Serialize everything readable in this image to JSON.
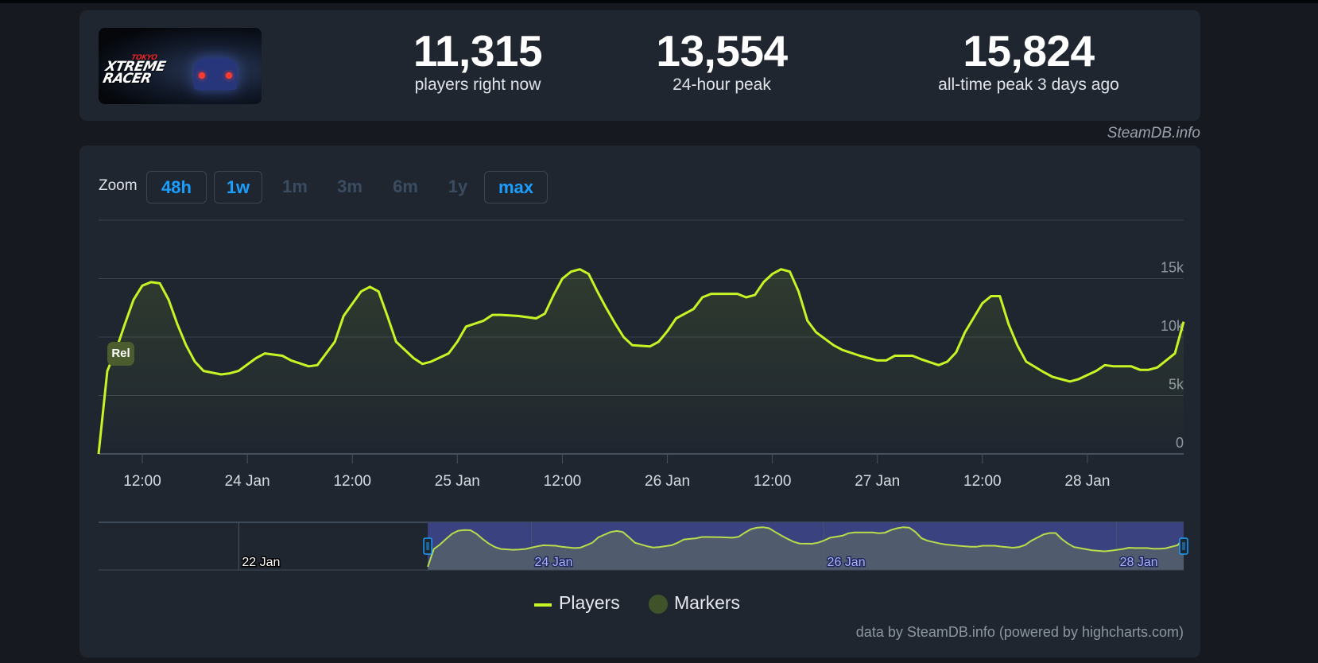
{
  "header": {
    "logo": "TOKYO XTREME RACER",
    "stats": [
      {
        "value": "11,315",
        "label": "players right now"
      },
      {
        "value": "13,554",
        "label": "24-hour peak"
      },
      {
        "value": "15,824",
        "label": "all-time peak 3 days ago"
      }
    ],
    "credit": "SteamDB.info"
  },
  "zoom": {
    "label": "Zoom",
    "buttons": [
      {
        "label": "48h",
        "active": true
      },
      {
        "label": "1w",
        "active": true
      },
      {
        "label": "1m",
        "active": false
      },
      {
        "label": "3m",
        "active": false
      },
      {
        "label": "6m",
        "active": false
      },
      {
        "label": "1y",
        "active": false
      },
      {
        "label": "max",
        "active": true
      }
    ]
  },
  "colors": {
    "line": "#c6f425",
    "marker": "#4b5c2e",
    "navigator_selection": "#3a4280",
    "accent": "#1a9fff"
  },
  "chart_data": {
    "type": "line",
    "x_range": [
      "23 Jan 07:00",
      "28 Jan 11:00"
    ],
    "ylim": [
      0,
      20000
    ],
    "y_ticks": [
      {
        "value": 0,
        "label": "0"
      },
      {
        "value": 5000,
        "label": "5k"
      },
      {
        "value": 10000,
        "label": "10k"
      },
      {
        "value": 15000,
        "label": "15k"
      }
    ],
    "x_ticks": [
      {
        "t": "23 Jan 12:00",
        "label": "12:00"
      },
      {
        "t": "24 Jan 00:00",
        "label": "24 Jan"
      },
      {
        "t": "24 Jan 12:00",
        "label": "12:00"
      },
      {
        "t": "25 Jan 00:00",
        "label": "25 Jan"
      },
      {
        "t": "25 Jan 12:00",
        "label": "12:00"
      },
      {
        "t": "26 Jan 00:00",
        "label": "26 Jan"
      },
      {
        "t": "26 Jan 12:00",
        "label": "12:00"
      },
      {
        "t": "27 Jan 00:00",
        "label": "27 Jan"
      },
      {
        "t": "27 Jan 12:00",
        "label": "12:00"
      },
      {
        "t": "28 Jan 00:00",
        "label": "28 Jan"
      }
    ],
    "grid": true,
    "series": [
      {
        "name": "Players",
        "points": [
          [
            "23 Jan 07:00",
            0
          ],
          [
            "23 Jan 08:00",
            7100
          ],
          [
            "23 Jan 09:00",
            8900
          ],
          [
            "23 Jan 10:00",
            11100
          ],
          [
            "23 Jan 11:00",
            13200
          ],
          [
            "23 Jan 12:00",
            14400
          ],
          [
            "23 Jan 13:00",
            14700
          ],
          [
            "23 Jan 14:00",
            14600
          ],
          [
            "23 Jan 15:00",
            13200
          ],
          [
            "23 Jan 16:00",
            11100
          ],
          [
            "23 Jan 17:00",
            9300
          ],
          [
            "23 Jan 18:00",
            7900
          ],
          [
            "23 Jan 19:00",
            7100
          ],
          [
            "23 Jan 21:00",
            6800
          ],
          [
            "23 Jan 22:00",
            6900
          ],
          [
            "23 Jan 23:00",
            7100
          ],
          [
            "24 Jan 01:00",
            8200
          ],
          [
            "24 Jan 02:00",
            8600
          ],
          [
            "24 Jan 04:00",
            8400
          ],
          [
            "24 Jan 05:00",
            8000
          ],
          [
            "24 Jan 07:00",
            7500
          ],
          [
            "24 Jan 08:00",
            7600
          ],
          [
            "24 Jan 09:00",
            8600
          ],
          [
            "24 Jan 10:00",
            9600
          ],
          [
            "24 Jan 11:00",
            11800
          ],
          [
            "24 Jan 13:00",
            13900
          ],
          [
            "24 Jan 14:00",
            14300
          ],
          [
            "24 Jan 15:00",
            13900
          ],
          [
            "24 Jan 16:00",
            11800
          ],
          [
            "24 Jan 17:00",
            9600
          ],
          [
            "24 Jan 19:00",
            8200
          ],
          [
            "24 Jan 20:00",
            7700
          ],
          [
            "24 Jan 21:00",
            7900
          ],
          [
            "24 Jan 23:00",
            8600
          ],
          [
            "25 Jan 00:00",
            9600
          ],
          [
            "25 Jan 01:00",
            10900
          ],
          [
            "25 Jan 03:00",
            11400
          ],
          [
            "25 Jan 04:00",
            11900
          ],
          [
            "25 Jan 05:00",
            11900
          ],
          [
            "25 Jan 07:00",
            11800
          ],
          [
            "25 Jan 09:00",
            11600
          ],
          [
            "25 Jan 10:00",
            12000
          ],
          [
            "25 Jan 11:00",
            13600
          ],
          [
            "25 Jan 12:00",
            15000
          ],
          [
            "25 Jan 13:00",
            15600
          ],
          [
            "25 Jan 14:00",
            15800
          ],
          [
            "25 Jan 15:00",
            15400
          ],
          [
            "25 Jan 16:00",
            13900
          ],
          [
            "25 Jan 17:00",
            12500
          ],
          [
            "25 Jan 18:00",
            11200
          ],
          [
            "25 Jan 19:00",
            10000
          ],
          [
            "25 Jan 20:00",
            9300
          ],
          [
            "25 Jan 22:00",
            9200
          ],
          [
            "25 Jan 23:00",
            9600
          ],
          [
            "26 Jan 00:00",
            10500
          ],
          [
            "26 Jan 01:00",
            11600
          ],
          [
            "26 Jan 03:00",
            12400
          ],
          [
            "26 Jan 04:00",
            13400
          ],
          [
            "26 Jan 05:00",
            13700
          ],
          [
            "26 Jan 06:00",
            13700
          ],
          [
            "26 Jan 08:00",
            13700
          ],
          [
            "26 Jan 09:00",
            13400
          ],
          [
            "26 Jan 10:00",
            13600
          ],
          [
            "26 Jan 11:00",
            14700
          ],
          [
            "26 Jan 12:00",
            15400
          ],
          [
            "26 Jan 13:00",
            15800
          ],
          [
            "26 Jan 14:00",
            15600
          ],
          [
            "26 Jan 15:00",
            13900
          ],
          [
            "26 Jan 16:00",
            11400
          ],
          [
            "26 Jan 17:00",
            10400
          ],
          [
            "26 Jan 19:00",
            9300
          ],
          [
            "26 Jan 20:00",
            8900
          ],
          [
            "26 Jan 22:00",
            8400
          ],
          [
            "27 Jan 00:00",
            8000
          ],
          [
            "27 Jan 01:00",
            8000
          ],
          [
            "27 Jan 02:00",
            8400
          ],
          [
            "27 Jan 04:00",
            8400
          ],
          [
            "27 Jan 05:00",
            8100
          ],
          [
            "27 Jan 07:00",
            7600
          ],
          [
            "27 Jan 08:00",
            7900
          ],
          [
            "27 Jan 09:00",
            8700
          ],
          [
            "27 Jan 10:00",
            10400
          ],
          [
            "27 Jan 12:00",
            12900
          ],
          [
            "27 Jan 13:00",
            13500
          ],
          [
            "27 Jan 14:00",
            13500
          ],
          [
            "27 Jan 15:00",
            11100
          ],
          [
            "27 Jan 16:00",
            9300
          ],
          [
            "27 Jan 17:00",
            7900
          ],
          [
            "27 Jan 19:00",
            7000
          ],
          [
            "27 Jan 20:00",
            6600
          ],
          [
            "27 Jan 22:00",
            6200
          ],
          [
            "27 Jan 23:00",
            6400
          ],
          [
            "28 Jan 01:00",
            7100
          ],
          [
            "28 Jan 02:00",
            7600
          ],
          [
            "28 Jan 03:00",
            7500
          ],
          [
            "28 Jan 05:00",
            7500
          ],
          [
            "28 Jan 06:00",
            7200
          ],
          [
            "28 Jan 07:00",
            7200
          ],
          [
            "28 Jan 08:00",
            7400
          ],
          [
            "28 Jan 10:00",
            8600
          ],
          [
            "28 Jan 11:00",
            11315
          ]
        ]
      }
    ],
    "markers": [
      {
        "t": "23 Jan 08:00",
        "label": "Rel"
      }
    ],
    "navigator": {
      "x_range": [
        "21 Jan 01:00",
        "28 Jan 11:00"
      ],
      "selection": [
        "23 Jan 07:00",
        "28 Jan 11:00"
      ],
      "ticks": [
        {
          "t": "22 Jan 00:00",
          "label": "22 Jan"
        },
        {
          "t": "24 Jan 00:00",
          "label": "24 Jan"
        },
        {
          "t": "26 Jan 00:00",
          "label": "26 Jan"
        },
        {
          "t": "28 Jan 00:00",
          "label": "28 Jan"
        }
      ]
    },
    "legend": {
      "placement": "bottom",
      "items": [
        "Players",
        "Markers"
      ]
    },
    "credits": "data by SteamDB.info (powered by highcharts.com)"
  }
}
